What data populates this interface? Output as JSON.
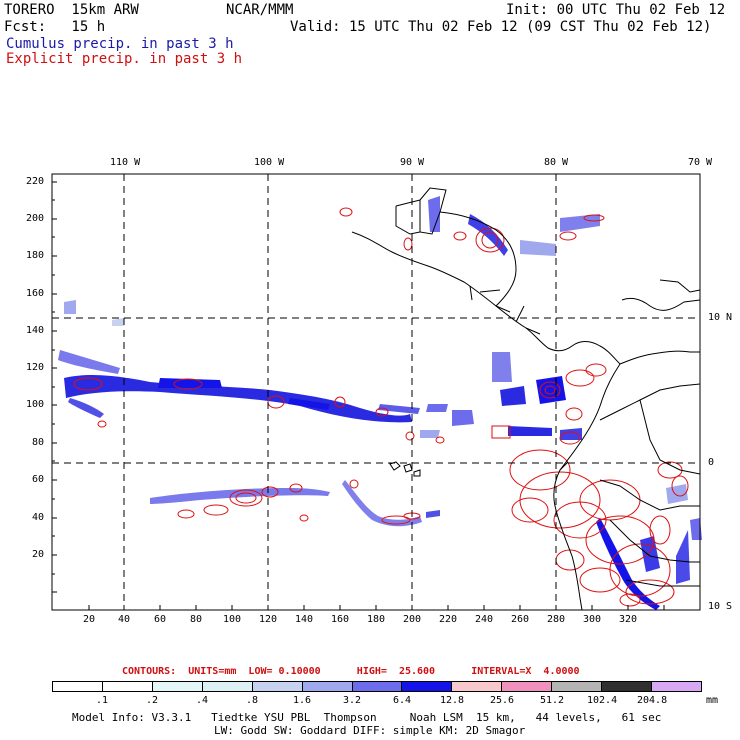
{
  "header": {
    "model": "TORERO  15km ARW",
    "center": "NCAR/MMM",
    "init": "Init: 00 UTC Thu 02 Feb 12",
    "fcst": "Fcst:   15 h",
    "valid": "Valid: 15 UTC Thu 02 Feb 12 (09 CST Thu 02 Feb 12)",
    "legend_cumulus": "Cumulus precip. in past 3 h",
    "legend_explicit": "Explicit precip. in past 3 h"
  },
  "map": {
    "top_lon_labels": [
      "110 W",
      "100 W",
      "90 W",
      "80 W",
      "70 W"
    ],
    "right_lat_labels": [
      "10 N",
      "0",
      "10 S"
    ],
    "left_y_ticks": [
      "220",
      "200",
      "180",
      "160",
      "140",
      "120",
      "100",
      "80",
      "60",
      "40",
      "20"
    ],
    "bottom_x_ticks": [
      "20",
      "40",
      "60",
      "80",
      "100",
      "120",
      "140",
      "160",
      "180",
      "200",
      "220",
      "240",
      "260",
      "280",
      "300",
      "320"
    ]
  },
  "contour_info": {
    "text": "CONTOURS:  UNITS=mm  LOW= 0.10000      HIGH=  25.600      INTERVAL=X  4.0000"
  },
  "colorbar": {
    "labels": [
      ".1",
      ".2",
      ".4",
      ".8",
      "1.6",
      "3.2",
      "6.4",
      "12.8",
      "25.6",
      "51.2",
      "102.4",
      "204.8"
    ],
    "colors": [
      "#ffffff",
      "#ffffff",
      "#e4f6f8",
      "#ddf0f4",
      "#c6d2f0",
      "#a0a8ee",
      "#6c6cec",
      "#1414e8",
      "#f8c8cc",
      "#f090bc",
      "#b4b4b4",
      "#303030",
      "#d8a8f4"
    ],
    "units": "mm"
  },
  "footer": {
    "line1": "Model Info: V3.3.1   Tiedtke YSU PBL  Thompson     Noah LSM  15 km,   44 levels,   61 sec",
    "line2": "LW: Godd SW: Goddard DIFF: simple KM: 2D Smagor"
  },
  "colors": {
    "cumulus": "#2222dd",
    "explicit": "#dd1111",
    "coast": "#000000"
  }
}
